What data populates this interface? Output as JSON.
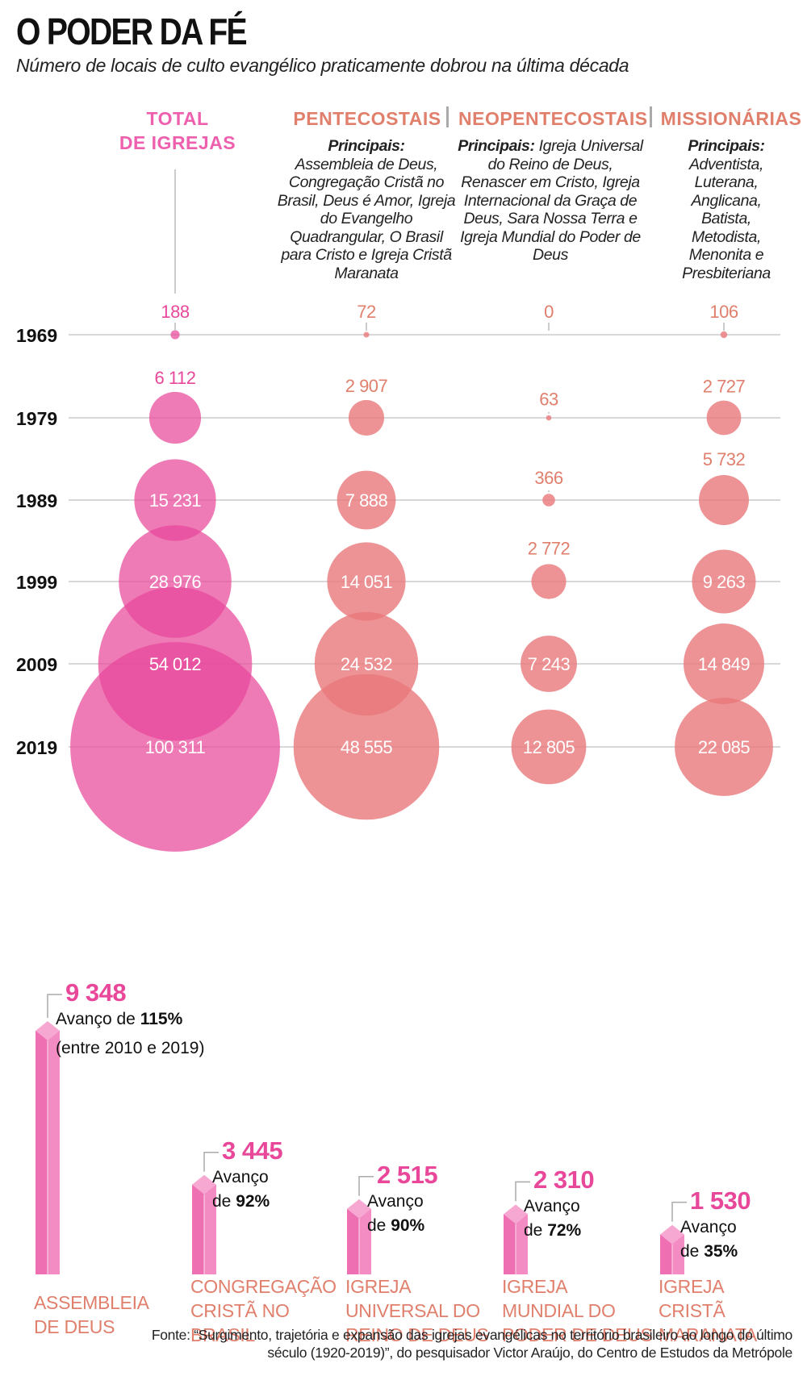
{
  "header": {
    "title": "O PODER DA FÉ",
    "subtitle": "Número de locais de culto evangélico praticamente dobrou na última década"
  },
  "columns": {
    "total": {
      "label_line1": "TOTAL",
      "label_line2": "DE IGREJAS"
    },
    "pentecostais": {
      "label": "PENTECOSTAIS",
      "prefix": "Principais:",
      "text": "Assembleia de Deus, Congregação Cristã no Brasil, Deus é Amor, Igreja do Evangelho Quadrangular, O Brasil para Cristo e Igreja Cristã Maranata"
    },
    "neopentecostais": {
      "label": "NEOPENTECOSTAIS",
      "prefix": "Principais:",
      "text": "Igreja Universal do Reino de Deus, Renascer em Cristo, Igreja Internacional da Graça de Deus, Sara Nossa Terra e Igreja Mundial do Poder de Deus"
    },
    "missionarias": {
      "label": "MISSIONÁRIAS",
      "prefix": "Principais:",
      "text": "Adventista, Luterana, Anglicana, Batista, Metodista, Menonita e Presbiteriana"
    }
  },
  "colors": {
    "total": "#e8479a",
    "groups": "#e8787a",
    "total_label": "#ee5fae",
    "group_label": "#e07f6c",
    "bar": "#ee72b4"
  },
  "chart_data": [
    {
      "type": "scatter",
      "title": "",
      "years": [
        "1969",
        "1979",
        "1989",
        "1999",
        "2009",
        "2019"
      ],
      "series": [
        {
          "name": "TOTAL DE IGREJAS",
          "values": [
            188,
            6112,
            15231,
            28976,
            54012,
            100311
          ],
          "labels": [
            "188",
            "6 112",
            "15 231",
            "28 976",
            "54 012",
            "100 311"
          ]
        },
        {
          "name": "PENTECOSTAIS",
          "values": [
            72,
            2907,
            7888,
            14051,
            24532,
            48555
          ],
          "labels": [
            "72",
            "2 907",
            "7 888",
            "14 051",
            "24 532",
            "48 555"
          ]
        },
        {
          "name": "NEOPENTECOSTAIS",
          "values": [
            0,
            63,
            366,
            2772,
            7243,
            12805
          ],
          "labels": [
            "0",
            "63",
            "366",
            "2 772",
            "7 243",
            "12 805"
          ]
        },
        {
          "name": "MISSIONÁRIAS",
          "values": [
            106,
            2727,
            5732,
            9263,
            14849,
            22085
          ],
          "labels": [
            "106",
            "2 727",
            "5 732",
            "9 263",
            "14 849",
            "22 085"
          ]
        }
      ]
    },
    {
      "type": "bar",
      "title": "",
      "categories": [
        "ASSEMBLEIA DE DEUS",
        "CONGREGAÇÃO CRISTÃ NO BRASIL",
        "IGREJA UNIVERSAL DO REINO DE DEUS",
        "IGREJA MUNDIAL DO PODER DE DEUS",
        "IGREJA CRISTÃ MARANATA"
      ],
      "values": [
        9348,
        3445,
        2515,
        2310,
        1530
      ],
      "value_labels": [
        "9 348",
        "3 445",
        "2 515",
        "2 310",
        "1 530"
      ],
      "growth": [
        "115%",
        "92%",
        "90%",
        "72%",
        "35%"
      ]
    }
  ],
  "bars": [
    {
      "lines": [
        "ASSEMBLEIA",
        "DE DEUS"
      ],
      "value": "9 348",
      "note_a": "Avanço de ",
      "pct": "115%",
      "note_b": "(entre 2010 e 2019)"
    },
    {
      "lines": [
        "CONGREGAÇÃO",
        "CRISTÃ NO",
        "BRASIL"
      ],
      "value": "3 445",
      "note_a": "Avanço",
      "note_c": "de ",
      "pct": "92%"
    },
    {
      "lines": [
        "IGREJA",
        "UNIVERSAL DO",
        "REINO DE DEUS"
      ],
      "value": "2 515",
      "note_a": "Avanço",
      "note_c": "de ",
      "pct": "90%"
    },
    {
      "lines": [
        "IGREJA",
        "MUNDIAL DO",
        "PODER DE DEUS"
      ],
      "value": "2 310",
      "note_a": "Avanço",
      "note_c": "de ",
      "pct": "72%"
    },
    {
      "lines": [
        "IGREJA",
        "CRISTÃ",
        "MARANATA"
      ],
      "value": "1 530",
      "note_a": "Avanço",
      "note_c": "de ",
      "pct": "35%"
    }
  ],
  "source": {
    "line1": "Fonte: “Surgimento, trajetória e expansão das igrejas evangélicas no território brasileiro ao longo do último",
    "line2": "século (1920-2019)”, do pesquisador Victor Araújo, do Centro de Estudos da Metrópole"
  }
}
